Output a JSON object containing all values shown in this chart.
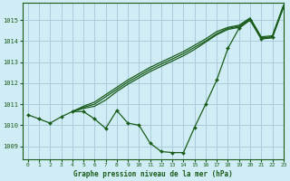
{
  "title": "Graphe pression niveau de la mer (hPa)",
  "background_color": "#d0ecf5",
  "grid_color": "#aaccdd",
  "line_color": "#1a5c1a",
  "xlim": [
    -0.5,
    23
  ],
  "ylim": [
    1008.4,
    1015.8
  ],
  "yticks": [
    1009,
    1010,
    1011,
    1012,
    1013,
    1014,
    1015
  ],
  "xticks": [
    0,
    1,
    2,
    3,
    4,
    5,
    6,
    7,
    8,
    9,
    10,
    11,
    12,
    13,
    14,
    15,
    16,
    17,
    18,
    19,
    20,
    21,
    22,
    23
  ],
  "series_wavy": {
    "x": [
      0,
      1,
      2,
      3,
      4,
      5,
      6,
      7,
      8,
      9,
      10,
      11,
      12,
      13,
      14,
      15,
      16,
      17,
      18,
      19,
      20,
      21,
      22,
      23
    ],
    "y": [
      1010.5,
      1010.3,
      1010.1,
      1010.4,
      1010.65,
      1010.65,
      1010.3,
      1009.85,
      1010.7,
      1010.1,
      1010.0,
      1009.15,
      1008.75,
      1008.7,
      1008.7,
      1009.9,
      1011.0,
      1012.15,
      1013.65,
      1014.6,
      1015.0,
      1014.1,
      1014.2,
      1015.6
    ]
  },
  "series_diag1": {
    "x": [
      4,
      5,
      6,
      7,
      8,
      9,
      10,
      11,
      12,
      13,
      14,
      15,
      16,
      17,
      18,
      19,
      20,
      21,
      22,
      23
    ],
    "y": [
      1010.65,
      1010.8,
      1010.9,
      1011.2,
      1011.6,
      1011.95,
      1012.25,
      1012.55,
      1012.8,
      1013.05,
      1013.3,
      1013.6,
      1013.95,
      1014.3,
      1014.55,
      1014.65,
      1015.0,
      1014.1,
      1014.15,
      1015.6
    ]
  },
  "series_diag2": {
    "x": [
      4,
      5,
      6,
      7,
      8,
      9,
      10,
      11,
      12,
      13,
      14,
      15,
      16,
      17,
      18,
      19,
      20,
      21,
      22,
      23
    ],
    "y": [
      1010.65,
      1010.85,
      1011.0,
      1011.35,
      1011.7,
      1012.05,
      1012.35,
      1012.65,
      1012.9,
      1013.15,
      1013.4,
      1013.7,
      1014.0,
      1014.35,
      1014.6,
      1014.7,
      1015.05,
      1014.15,
      1014.2,
      1015.65
    ]
  },
  "series_diag3": {
    "x": [
      4,
      5,
      6,
      7,
      8,
      9,
      10,
      11,
      12,
      13,
      14,
      15,
      16,
      17,
      18,
      19,
      20,
      21,
      22,
      23
    ],
    "y": [
      1010.65,
      1010.9,
      1011.1,
      1011.45,
      1011.8,
      1012.15,
      1012.45,
      1012.75,
      1013.0,
      1013.25,
      1013.5,
      1013.8,
      1014.1,
      1014.45,
      1014.65,
      1014.75,
      1015.1,
      1014.2,
      1014.25,
      1015.7
    ]
  }
}
